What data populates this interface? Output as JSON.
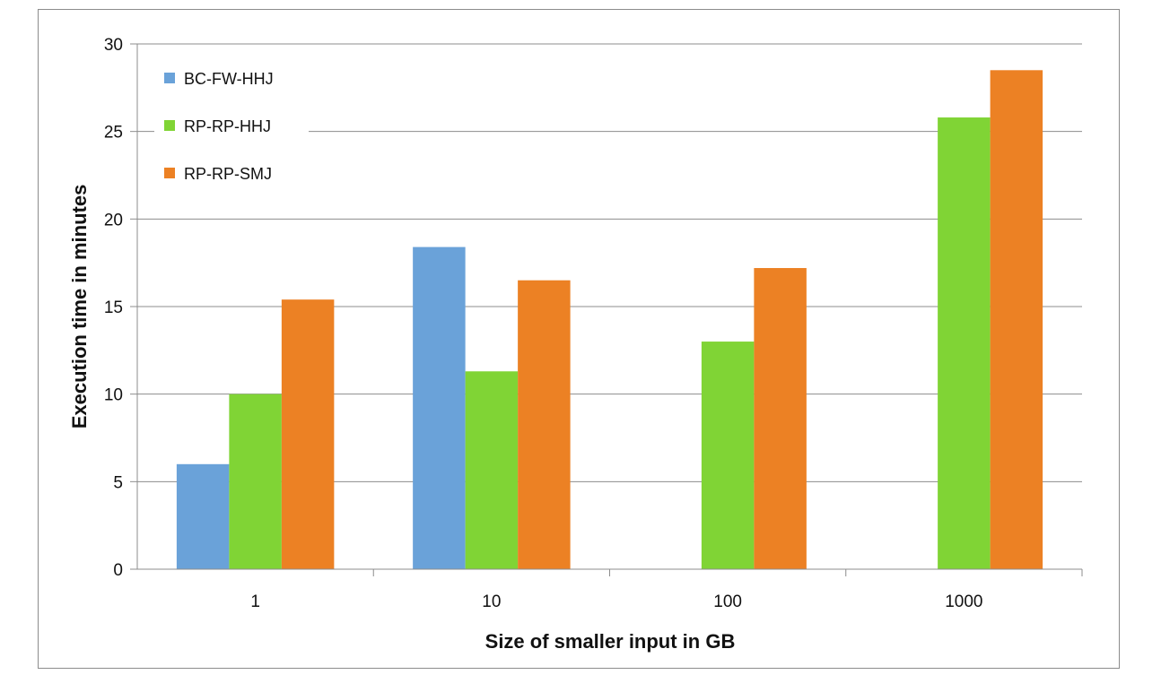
{
  "chart_data": {
    "type": "bar",
    "title": "",
    "xlabel": "Size of smaller input in GB",
    "ylabel": "Execution time in minutes",
    "categories": [
      "1",
      "10",
      "100",
      "1000"
    ],
    "ylim": [
      0,
      30
    ],
    "yticks": [
      0,
      5,
      10,
      15,
      20,
      25,
      30
    ],
    "grid": true,
    "legend_position": "top-left",
    "series": [
      {
        "name": "BC-FW-HHJ",
        "color": "#6aa2d9",
        "values": [
          6.0,
          18.4,
          null,
          null
        ]
      },
      {
        "name": "RP-RP-HHJ",
        "color": "#80d435",
        "values": [
          10.0,
          11.3,
          13.0,
          25.8
        ]
      },
      {
        "name": "RP-RP-SMJ",
        "color": "#ec8124",
        "values": [
          15.4,
          16.5,
          17.2,
          28.5
        ]
      }
    ]
  }
}
